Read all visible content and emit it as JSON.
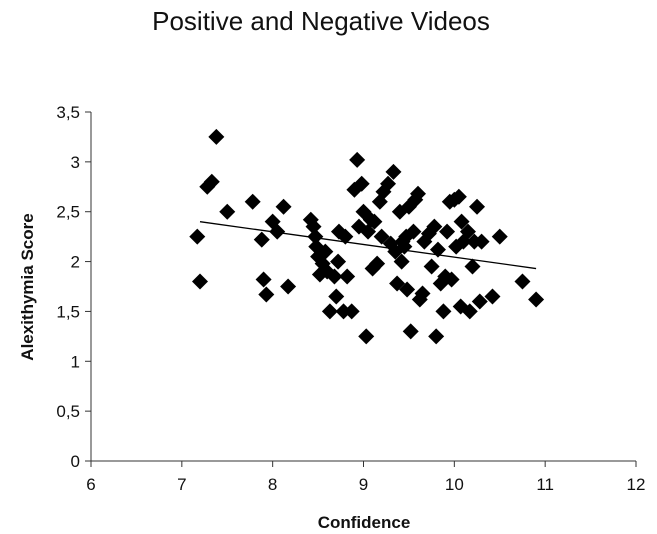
{
  "chart_data": {
    "type": "scatter",
    "title": "Positive and Negative Videos",
    "xlabel": "Confidence",
    "ylabel": "Alexithymia Score",
    "xlim": [
      6,
      12
    ],
    "ylim": [
      0,
      3.5
    ],
    "x_ticks": [
      6,
      7,
      8,
      9,
      10,
      11,
      12
    ],
    "x_tick_labels": [
      "6",
      "7",
      "8",
      "9",
      "10",
      "11",
      "12"
    ],
    "y_ticks": [
      0,
      0.5,
      1,
      1.5,
      2,
      2.5,
      3,
      3.5
    ],
    "y_tick_labels": [
      "0",
      "0,5",
      "1",
      "1,5",
      "2",
      "2,5",
      "3",
      "3,5"
    ],
    "grid": false,
    "legend": "none",
    "marker": "diamond",
    "marker_color": "#000000",
    "trendline": {
      "type": "linear",
      "x": [
        7.2,
        10.9
      ],
      "y": [
        2.4,
        1.93
      ],
      "color": "#000000"
    },
    "points": [
      {
        "x": 7.17,
        "y": 2.25
      },
      {
        "x": 7.2,
        "y": 1.8
      },
      {
        "x": 7.28,
        "y": 2.75
      },
      {
        "x": 7.33,
        "y": 2.8
      },
      {
        "x": 7.38,
        "y": 3.25
      },
      {
        "x": 7.5,
        "y": 2.5
      },
      {
        "x": 7.78,
        "y": 2.6
      },
      {
        "x": 7.88,
        "y": 2.22
      },
      {
        "x": 7.9,
        "y": 1.82
      },
      {
        "x": 7.93,
        "y": 1.67
      },
      {
        "x": 8.0,
        "y": 2.4
      },
      {
        "x": 8.05,
        "y": 2.3
      },
      {
        "x": 8.12,
        "y": 2.55
      },
      {
        "x": 8.17,
        "y": 1.75
      },
      {
        "x": 8.42,
        "y": 2.42
      },
      {
        "x": 8.45,
        "y": 2.35
      },
      {
        "x": 8.47,
        "y": 2.25
      },
      {
        "x": 8.48,
        "y": 2.15
      },
      {
        "x": 8.5,
        "y": 2.05
      },
      {
        "x": 8.52,
        "y": 1.87
      },
      {
        "x": 8.55,
        "y": 1.98
      },
      {
        "x": 8.58,
        "y": 2.1
      },
      {
        "x": 8.6,
        "y": 1.9
      },
      {
        "x": 8.63,
        "y": 1.5
      },
      {
        "x": 8.68,
        "y": 1.85
      },
      {
        "x": 8.7,
        "y": 1.65
      },
      {
        "x": 8.72,
        "y": 2.0
      },
      {
        "x": 8.73,
        "y": 2.3
      },
      {
        "x": 8.78,
        "y": 1.5
      },
      {
        "x": 8.8,
        "y": 2.25
      },
      {
        "x": 8.82,
        "y": 1.85
      },
      {
        "x": 8.87,
        "y": 1.5
      },
      {
        "x": 8.9,
        "y": 2.72
      },
      {
        "x": 8.93,
        "y": 3.02
      },
      {
        "x": 8.95,
        "y": 2.35
      },
      {
        "x": 8.98,
        "y": 2.78
      },
      {
        "x": 9.0,
        "y": 2.5
      },
      {
        "x": 9.03,
        "y": 1.25
      },
      {
        "x": 9.05,
        "y": 2.3
      },
      {
        "x": 9.08,
        "y": 2.42
      },
      {
        "x": 9.1,
        "y": 1.93
      },
      {
        "x": 9.12,
        "y": 2.4
      },
      {
        "x": 9.15,
        "y": 1.98
      },
      {
        "x": 9.18,
        "y": 2.6
      },
      {
        "x": 9.2,
        "y": 2.25
      },
      {
        "x": 9.22,
        "y": 2.7
      },
      {
        "x": 9.27,
        "y": 2.78
      },
      {
        "x": 9.3,
        "y": 2.18
      },
      {
        "x": 9.33,
        "y": 2.9
      },
      {
        "x": 9.35,
        "y": 2.1
      },
      {
        "x": 9.37,
        "y": 1.78
      },
      {
        "x": 9.4,
        "y": 2.5
      },
      {
        "x": 9.42,
        "y": 2.0
      },
      {
        "x": 9.43,
        "y": 2.2
      },
      {
        "x": 9.45,
        "y": 2.15
      },
      {
        "x": 9.47,
        "y": 2.25
      },
      {
        "x": 9.48,
        "y": 1.72
      },
      {
        "x": 9.5,
        "y": 2.55
      },
      {
        "x": 9.52,
        "y": 1.3
      },
      {
        "x": 9.55,
        "y": 2.3
      },
      {
        "x": 9.57,
        "y": 2.62
      },
      {
        "x": 9.6,
        "y": 2.68
      },
      {
        "x": 9.62,
        "y": 1.62
      },
      {
        "x": 9.65,
        "y": 1.68
      },
      {
        "x": 9.67,
        "y": 2.2
      },
      {
        "x": 9.72,
        "y": 2.28
      },
      {
        "x": 9.75,
        "y": 1.95
      },
      {
        "x": 9.78,
        "y": 2.35
      },
      {
        "x": 9.8,
        "y": 1.25
      },
      {
        "x": 9.82,
        "y": 2.12
      },
      {
        "x": 9.85,
        "y": 1.78
      },
      {
        "x": 9.88,
        "y": 1.5
      },
      {
        "x": 9.9,
        "y": 1.85
      },
      {
        "x": 9.92,
        "y": 2.3
      },
      {
        "x": 9.95,
        "y": 2.6
      },
      {
        "x": 9.97,
        "y": 1.82
      },
      {
        "x": 10.0,
        "y": 2.62
      },
      {
        "x": 10.02,
        "y": 2.15
      },
      {
        "x": 10.05,
        "y": 2.65
      },
      {
        "x": 10.07,
        "y": 1.55
      },
      {
        "x": 10.08,
        "y": 2.4
      },
      {
        "x": 10.1,
        "y": 2.2
      },
      {
        "x": 10.15,
        "y": 2.3
      },
      {
        "x": 10.17,
        "y": 1.5
      },
      {
        "x": 10.2,
        "y": 1.95
      },
      {
        "x": 10.22,
        "y": 2.2
      },
      {
        "x": 10.25,
        "y": 2.55
      },
      {
        "x": 10.28,
        "y": 1.6
      },
      {
        "x": 10.3,
        "y": 2.2
      },
      {
        "x": 10.42,
        "y": 1.65
      },
      {
        "x": 10.5,
        "y": 2.25
      },
      {
        "x": 10.75,
        "y": 1.8
      },
      {
        "x": 10.9,
        "y": 1.62
      }
    ]
  }
}
